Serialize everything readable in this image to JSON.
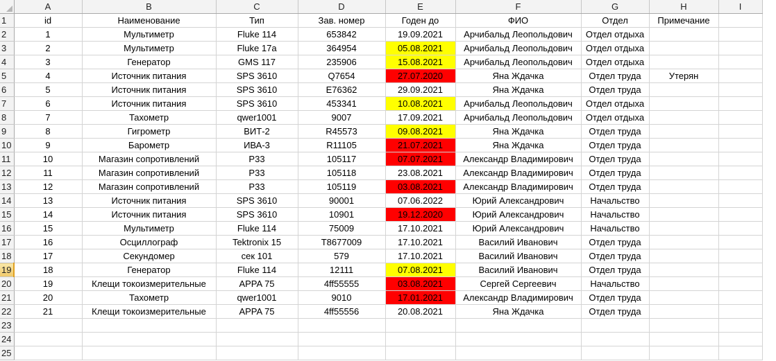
{
  "columns": [
    "A",
    "B",
    "C",
    "D",
    "E",
    "F",
    "G",
    "H",
    "I"
  ],
  "header_row": {
    "A": "id",
    "B": "Наименование",
    "C": "Тип",
    "D": "Зав. номер",
    "E": "Годен до",
    "F": "ФИО",
    "G": "Отдел",
    "H": "Примечание",
    "I": ""
  },
  "row_numbers": [
    "1",
    "2",
    "3",
    "4",
    "5",
    "6",
    "7",
    "8",
    "9",
    "10",
    "11",
    "12",
    "13",
    "14",
    "15",
    "16",
    "17",
    "18",
    "19",
    "20",
    "21",
    "22",
    "23",
    "24",
    "25"
  ],
  "active_row": "19",
  "status_colors": {
    "expired": "#ff0000",
    "soon": "#ffff00"
  },
  "rows": [
    {
      "id": "1",
      "name": "Мультиметр",
      "type": "Fluke 114",
      "serial": "653842",
      "valid_until": "19.09.2021",
      "status": "",
      "fio": "Арчибальд Леопольдович",
      "dept": "Отдел отдыха",
      "note": ""
    },
    {
      "id": "2",
      "name": "Мультиметр",
      "type": "Fluke 17a",
      "serial": "364954",
      "valid_until": "05.08.2021",
      "status": "soon",
      "fio": "Арчибальд Леопольдович",
      "dept": "Отдел отдыха",
      "note": ""
    },
    {
      "id": "3",
      "name": "Генератор",
      "type": "GMS 117",
      "serial": "235906",
      "valid_until": "15.08.2021",
      "status": "soon",
      "fio": "Арчибальд Леопольдович",
      "dept": "Отдел отдыха",
      "note": ""
    },
    {
      "id": "4",
      "name": "Источник питания",
      "type": "SPS 3610",
      "serial": "Q7654",
      "valid_until": "27.07.2020",
      "status": "expired",
      "fio": "Яна Ждачка",
      "dept": "Отдел труда",
      "note": "Утерян"
    },
    {
      "id": "5",
      "name": "Источник питания",
      "type": "SPS 3610",
      "serial": "E76362",
      "valid_until": "29.09.2021",
      "status": "",
      "fio": "Яна Ждачка",
      "dept": "Отдел труда",
      "note": ""
    },
    {
      "id": "6",
      "name": "Источник питания",
      "type": "SPS 3610",
      "serial": "453341",
      "valid_until": "10.08.2021",
      "status": "soon",
      "fio": "Арчибальд Леопольдович",
      "dept": "Отдел отдыха",
      "note": ""
    },
    {
      "id": "7",
      "name": "Тахометр",
      "type": "qwer1001",
      "serial": "9007",
      "valid_until": "17.09.2021",
      "status": "",
      "fio": "Арчибальд Леопольдович",
      "dept": "Отдел отдыха",
      "note": ""
    },
    {
      "id": "8",
      "name": "Гигрометр",
      "type": "ВИТ-2",
      "serial": "R45573",
      "valid_until": "09.08.2021",
      "status": "soon",
      "fio": "Яна Ждачка",
      "dept": "Отдел труда",
      "note": ""
    },
    {
      "id": "9",
      "name": "Барометр",
      "type": "ИВА-3",
      "serial": "R11105",
      "valid_until": "21.07.2021",
      "status": "expired",
      "fio": "Яна Ждачка",
      "dept": "Отдел труда",
      "note": ""
    },
    {
      "id": "10",
      "name": "Магазин сопротивлений",
      "type": "Р33",
      "serial": "105117",
      "valid_until": "07.07.2021",
      "status": "expired",
      "fio": "Александр Владимирович",
      "dept": "Отдел труда",
      "note": ""
    },
    {
      "id": "11",
      "name": "Магазин сопротивлений",
      "type": "Р33",
      "serial": "105118",
      "valid_until": "23.08.2021",
      "status": "",
      "fio": "Александр Владимирович",
      "dept": "Отдел труда",
      "note": ""
    },
    {
      "id": "12",
      "name": "Магазин сопротивлений",
      "type": "Р33",
      "serial": "105119",
      "valid_until": "03.08.2021",
      "status": "expired",
      "fio": "Александр Владимирович",
      "dept": "Отдел труда",
      "note": ""
    },
    {
      "id": "13",
      "name": "Источник питания",
      "type": "SPS 3610",
      "serial": "90001",
      "valid_until": "07.06.2022",
      "status": "",
      "fio": "Юрий Александрович",
      "dept": "Начальство",
      "note": ""
    },
    {
      "id": "14",
      "name": "Источник питания",
      "type": "SPS 3610",
      "serial": "10901",
      "valid_until": "19.12.2020",
      "status": "expired",
      "fio": "Юрий Александрович",
      "dept": "Начальство",
      "note": ""
    },
    {
      "id": "15",
      "name": "Мультиметр",
      "type": "Fluke 114",
      "serial": "75009",
      "valid_until": "17.10.2021",
      "status": "",
      "fio": "Юрий Александрович",
      "dept": "Начальство",
      "note": ""
    },
    {
      "id": "16",
      "name": "Осциллограф",
      "type": "Tektronix 15",
      "serial": "T8677009",
      "valid_until": "17.10.2021",
      "status": "",
      "fio": "Василий Иванович",
      "dept": "Отдел труда",
      "note": ""
    },
    {
      "id": "17",
      "name": "Секундомер",
      "type": "сек 101",
      "serial": "579",
      "valid_until": "17.10.2021",
      "status": "",
      "fio": "Василий Иванович",
      "dept": "Отдел труда",
      "note": ""
    },
    {
      "id": "18",
      "name": "Генератор",
      "type": "Fluke 114",
      "serial": "12111",
      "valid_until": "07.08.2021",
      "status": "soon",
      "fio": "Василий Иванович",
      "dept": "Отдел труда",
      "note": ""
    },
    {
      "id": "19",
      "name": "Клещи токоизмерительные",
      "type": "APPA 75",
      "serial": "4ff55555",
      "valid_until": "03.08.2021",
      "status": "expired",
      "fio": "Сергей Сергеевич",
      "dept": "Начальство",
      "note": ""
    },
    {
      "id": "20",
      "name": "Тахометр",
      "type": "qwer1001",
      "serial": "9010",
      "valid_until": "17.01.2021",
      "status": "expired",
      "fio": "Александр Владимирович",
      "dept": "Отдел труда",
      "note": ""
    },
    {
      "id": "21",
      "name": "Клещи токоизмерительные",
      "type": "APPA 75",
      "serial": "4ff55556",
      "valid_until": "20.08.2021",
      "status": "",
      "fio": "Яна Ждачка",
      "dept": "Отдел труда",
      "note": ""
    }
  ]
}
